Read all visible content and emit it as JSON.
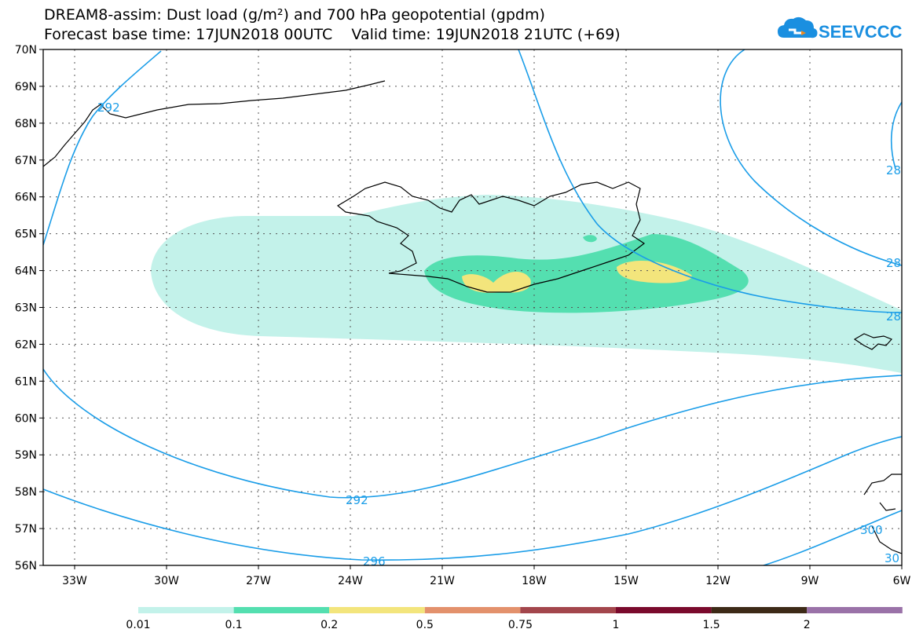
{
  "header": {
    "title": "DREAM8-assim: Dust load (g/m²) and 700 hPa geopotential (gpdm)",
    "subtitle": "Forecast base time: 17JUN2018 00UTC    Valid time: 19JUN2018 21UTC (+69)"
  },
  "logo": {
    "text": "SEEVCCC",
    "icon": "cloud-icon",
    "color": "#1a8fe0"
  },
  "map": {
    "lat_labels": [
      "70N",
      "69N",
      "68N",
      "67N",
      "66N",
      "65N",
      "64N",
      "63N",
      "62N",
      "61N",
      "60N",
      "59N",
      "58N",
      "57N",
      "56N"
    ],
    "lon_labels": [
      "33W",
      "30W",
      "27W",
      "24W",
      "21W",
      "18W",
      "15W",
      "12W",
      "9W",
      "6W"
    ],
    "contour_labels": [
      "292",
      "292",
      "296",
      "28",
      "28",
      "28",
      "300",
      "30"
    ],
    "contour_color": "#1a9de8"
  },
  "colorbar": {
    "labels": [
      "0.01",
      "0.1",
      "0.2",
      "0.5",
      "0.75",
      "1",
      "1.5",
      "2"
    ],
    "colors": [
      "#c3f2ea",
      "#54dfb0",
      "#f3e57c",
      "#e3916c",
      "#a3464c",
      "#7a0a2c",
      "#3d2a17",
      "#9a72a8"
    ]
  }
}
